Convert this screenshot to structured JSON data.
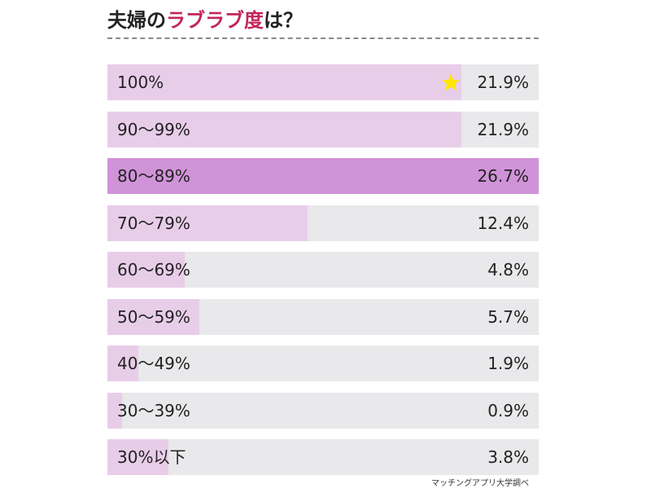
{
  "title": {
    "prefix": "夫婦の",
    "accent": "ラブラブ度",
    "suffix": "は？",
    "accent_color": "#c2265a"
  },
  "source": "マッチングアプリ大学調べ",
  "colors": {
    "track": "#e9e8ea",
    "bar": "#e8cde9",
    "bar_highlight": "#d093d8",
    "star": "#ffe600"
  },
  "chart_data": {
    "type": "bar",
    "orientation": "horizontal",
    "title": "夫婦のラブラブ度は？",
    "categories": [
      "100%",
      "90〜99%",
      "80〜89%",
      "70〜79%",
      "60〜69%",
      "50〜59%",
      "40〜49%",
      "30〜39%",
      "30%以下"
    ],
    "values": [
      21.9,
      21.9,
      26.7,
      12.4,
      4.8,
      5.7,
      1.9,
      0.9,
      3.8
    ],
    "value_labels": [
      "21.9%",
      "21.9%",
      "26.7%",
      "12.4%",
      "4.8%",
      "5.7%",
      "1.9%",
      "0.9%",
      "3.8%"
    ],
    "xlim": [
      0,
      26.7
    ],
    "highlight_index": 2,
    "star_index": 0,
    "grid": false,
    "legend": "none"
  }
}
